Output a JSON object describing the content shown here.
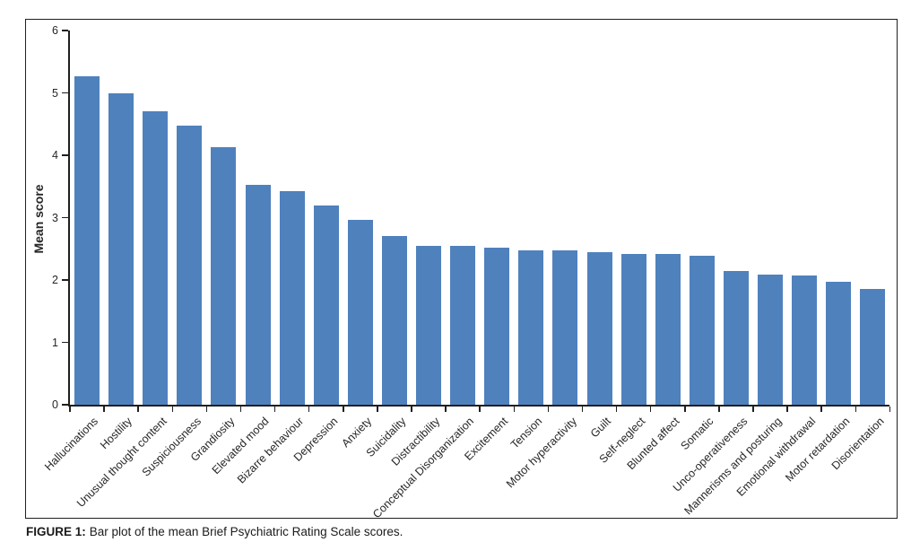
{
  "figure": {
    "caption_label": "FIGURE 1:",
    "caption_text": "Bar plot of the mean Brief Psychiatric Rating Scale scores."
  },
  "chart_data": {
    "type": "bar",
    "title": "",
    "xlabel": "",
    "ylabel": "Mean score",
    "ylim": [
      0,
      6
    ],
    "yticks": [
      0,
      1,
      2,
      3,
      4,
      5,
      6
    ],
    "grid": false,
    "legend": null,
    "bar_color": "#4F81BD",
    "axis_color": "#1F1F1F",
    "categories": [
      "Hallucinations",
      "Hostility",
      "Unusual thought content",
      "Suspiciousness",
      "Grandiosity",
      "Elevated mood",
      "Bizarre behaviour",
      "Depression",
      "Anxiety",
      "Suicidality",
      "Distractibility",
      "Conceptual Disorganization",
      "Excitement",
      "Tension",
      "Motor hyperactivity",
      "Guilt",
      "Self-neglect",
      "Blunted affect",
      "Somatic",
      "Unco-operativeness",
      "Mannerisms and posturing",
      "Emotional withdrawal",
      "Motor retardation",
      "Disorientation"
    ],
    "values": [
      5.26,
      5.0,
      4.71,
      4.48,
      4.13,
      3.52,
      3.42,
      3.19,
      2.96,
      2.7,
      2.54,
      2.54,
      2.52,
      2.48,
      2.48,
      2.45,
      2.42,
      2.42,
      2.39,
      2.15,
      2.08,
      2.07,
      1.97,
      1.85
    ]
  }
}
